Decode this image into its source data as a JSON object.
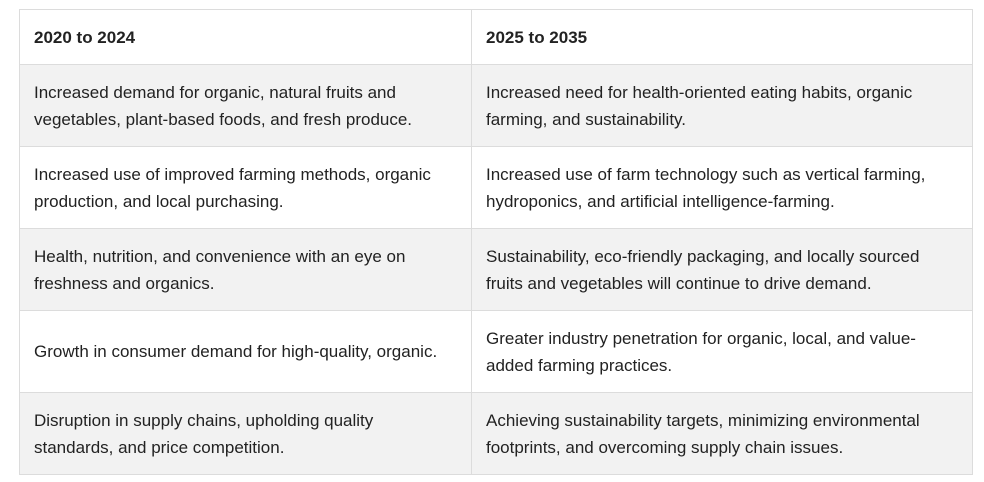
{
  "table": {
    "headers": [
      "2020 to 2024",
      "2025 to 2035"
    ],
    "rows": [
      [
        "Increased demand for organic, natural fruits and vegetables, plant-based foods, and fresh produce.",
        "Increased need for health-oriented eating habits, organic farming, and sustainability."
      ],
      [
        "Increased use of improved farming methods, organic production, and local purchasing.",
        "Increased use of farm technology such as vertical farming, hydroponics, and artificial intelligence-farming."
      ],
      [
        "Health, nutrition, and convenience with an eye on freshness and organics.",
        "Sustainability, eco-friendly packaging, and locally sourced fruits and vegetables will continue to drive demand."
      ],
      [
        "Growth in consumer demand for high-quality, organic.",
        "Greater industry penetration for organic, local, and value-added farming practices."
      ],
      [
        "Disruption in supply chains, upholding quality standards, and price competition.",
        "Achieving sustainability targets, minimizing environmental footprints, and overcoming supply chain issues."
      ]
    ]
  }
}
